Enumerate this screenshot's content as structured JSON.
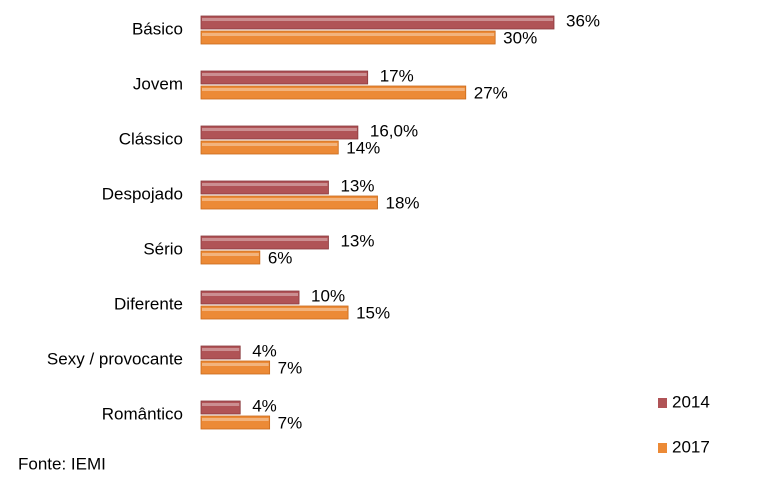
{
  "chart_data": {
    "type": "bar",
    "orientation": "horizontal",
    "categories": [
      "Básico",
      "Jovem",
      "Clássico",
      "Despojado",
      "Sério",
      "Diferente",
      "Sexy / provocante",
      "Romântico"
    ],
    "series": [
      {
        "name": "2014",
        "color": "#b05356",
        "values": [
          36,
          17,
          16,
          13,
          13,
          10,
          4,
          4
        ],
        "value_labels": [
          "36%",
          "17%",
          "16,0%",
          "13%",
          "13%",
          "10%",
          "4%",
          "4%"
        ]
      },
      {
        "name": "2017",
        "color": "#ec8a36",
        "values": [
          30,
          27,
          14,
          18,
          6,
          15,
          7,
          7
        ],
        "value_labels": [
          "30%",
          "27%",
          "14%",
          "18%",
          "6%",
          "15%",
          "7%",
          "7%"
        ]
      }
    ],
    "source": "Fonte: IEMI",
    "legend": "bottom-right"
  }
}
